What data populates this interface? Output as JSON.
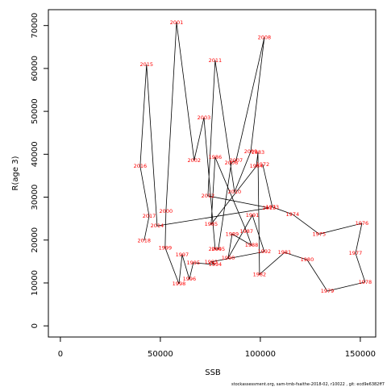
{
  "chart_data": {
    "type": "connected-scatter",
    "x_label": "SSB",
    "y_label": "R(age 3)",
    "footnote": "stockassessment.org, sam-tmb-fsaithe-2018-02, r10022 , git: ecd9e6382ff7",
    "xlim": [
      -6000,
      157700
    ],
    "ylim": [
      -2600,
      73700
    ],
    "xticks": [
      0,
      50000,
      100000,
      150000
    ],
    "yticks": [
      0,
      10000,
      20000,
      30000,
      40000,
      50000,
      60000,
      70000
    ],
    "line_color": "#000000",
    "label_color": "#ff0000",
    "point_labels": [
      1972,
      1973,
      1974,
      1975,
      1976,
      1977,
      1978,
      1979,
      1980,
      1981,
      1982,
      1983,
      1984,
      1985,
      1986,
      1987,
      1988,
      1989,
      1990,
      1991,
      1992,
      1993,
      1994,
      1995,
      1996,
      1997,
      1998,
      1999,
      2000,
      2001,
      2002,
      2003,
      2004,
      2005,
      2006,
      2007,
      2008,
      2009,
      2010,
      2011,
      2012,
      2013,
      2014,
      2015,
      2016,
      2017,
      2018
    ],
    "x": [
      101200,
      106000,
      116100,
      129400,
      150800,
      147600,
      152400,
      133500,
      123400,
      112100,
      99600,
      98800,
      98000,
      75400,
      77400,
      93100,
      95600,
      85900,
      83900,
      96000,
      102000,
      75400,
      77400,
      66500,
      64500,
      60900,
      59300,
      52400,
      52800,
      58100,
      66900,
      71800,
      77400,
      79000,
      85500,
      87900,
      102000,
      95200,
      87100,
      77400,
      73800,
      104400,
      48400,
      43100,
      39900,
      44400,
      41900
    ],
    "values": [
      37600,
      27700,
      26000,
      21400,
      23900,
      16900,
      10200,
      8100,
      15400,
      17100,
      12000,
      40400,
      37200,
      23700,
      39300,
      22000,
      18800,
      21400,
      15800,
      25800,
      17300,
      14900,
      14300,
      14700,
      10900,
      16600,
      9800,
      18200,
      26700,
      70700,
      38600,
      48500,
      17900,
      17900,
      38000,
      38600,
      67200,
      40600,
      31200,
      61900,
      30300,
      27500,
      23300,
      60900,
      37200,
      25600,
      19900
    ]
  }
}
